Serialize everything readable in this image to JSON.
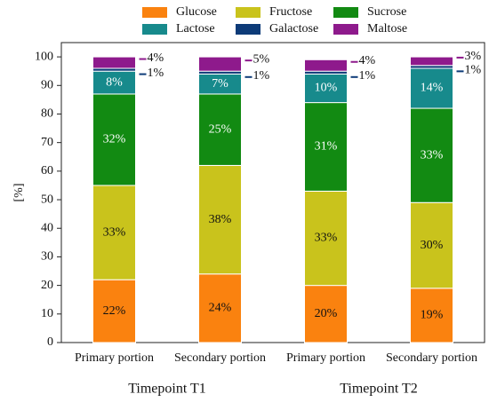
{
  "chart_data": {
    "type": "stacked_bar",
    "y_label": "[%]",
    "categories": [
      "Primary portion",
      "Secondary portion",
      "Primary portion",
      "Secondary portion"
    ],
    "group_labels": [
      "Timepoint T1",
      "Timepoint T2"
    ],
    "ylim": [
      0,
      105
    ],
    "yticks": [
      0,
      10,
      20,
      30,
      40,
      50,
      60,
      70,
      80,
      90,
      100
    ],
    "series": [
      {
        "name": "Glucose",
        "color": "#fa820f",
        "values": [
          22,
          24,
          20,
          19
        ],
        "value_labels": [
          "22%",
          "24%",
          "20%",
          "19%"
        ]
      },
      {
        "name": "Fructose",
        "color": "#c9c31c",
        "values": [
          33,
          38,
          33,
          30
        ],
        "value_labels": [
          "33%",
          "38%",
          "33%",
          "30%"
        ]
      },
      {
        "name": "Sucrose",
        "color": "#128a12",
        "values": [
          32,
          25,
          31,
          33
        ],
        "value_labels": [
          "32%",
          "25%",
          "31%",
          "33%"
        ]
      },
      {
        "name": "Lactose",
        "color": "#178a8c",
        "values": [
          8,
          7,
          10,
          14
        ],
        "value_labels": [
          "8%",
          "7%",
          "10%",
          "14%"
        ]
      },
      {
        "name": "Galactose",
        "color": "#0d3b78",
        "values": [
          1,
          1,
          1,
          1
        ],
        "value_labels": [
          "1%",
          "1%",
          "1%",
          "1%"
        ]
      },
      {
        "name": "Maltose",
        "color": "#8e1a8c",
        "values": [
          4,
          5,
          4,
          3
        ],
        "value_labels": [
          "4%",
          "5%",
          "4%",
          "3%"
        ]
      }
    ]
  }
}
